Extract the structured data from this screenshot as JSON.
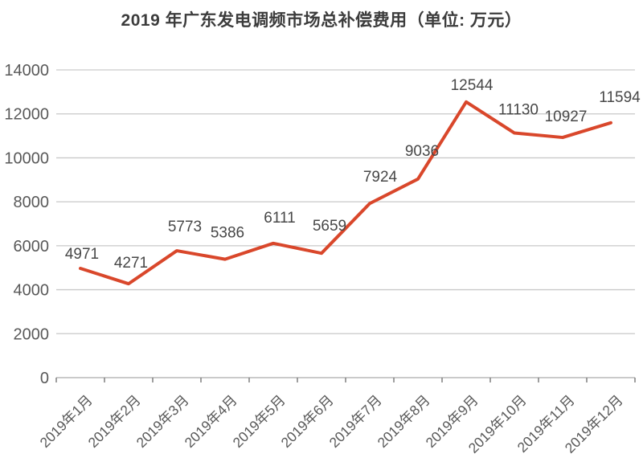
{
  "chart_data": {
    "type": "line",
    "title": "2019 年广东发电调频市场总补偿费用（单位: 万元）",
    "categories": [
      "2019年1月",
      "2019年2月",
      "2019年3月",
      "2019年4月",
      "2019年5月",
      "2019年6月",
      "2019年7月",
      "2019年8月",
      "2019年9月",
      "2019年10月",
      "2019年11月",
      "2019年12月"
    ],
    "values": [
      4971,
      4271,
      5773,
      5386,
      6111,
      5659,
      7924,
      9036,
      12544,
      11130,
      10927,
      11594
    ],
    "xlabel": "",
    "ylabel": "",
    "ylim": [
      0,
      14000
    ],
    "y_ticks": [
      0,
      2000,
      4000,
      6000,
      8000,
      10000,
      12000,
      14000
    ],
    "grid": "horizontal",
    "legend": "none",
    "x_label_rotation": -45,
    "line_color": "#d9472b"
  }
}
